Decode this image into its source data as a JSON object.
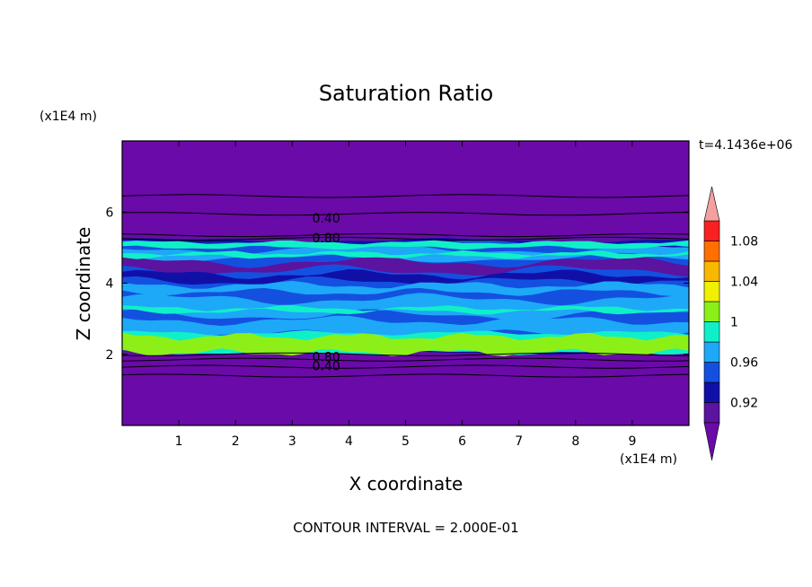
{
  "chart_data": {
    "type": "contour",
    "title": "Saturation Ratio",
    "xlabel": "X coordinate",
    "ylabel": "Z coordinate",
    "x_unit": "(x1E4 m)",
    "y_unit": "(x1E4 m)",
    "time_label": "t=4.1436e+06",
    "footer": "CONTOUR INTERVAL = 2.000E-01",
    "xlim": [
      0,
      10
    ],
    "ylim": [
      0,
      8
    ],
    "xticks": [
      1,
      2,
      3,
      4,
      5,
      6,
      7,
      8,
      9
    ],
    "yticks": [
      2,
      4,
      6
    ],
    "grid": false,
    "contour_labels": [
      {
        "text": "0.40",
        "x": 3.6,
        "y": 5.85
      },
      {
        "text": "0.80",
        "x": 3.6,
        "y": 5.3
      },
      {
        "text": "0.80",
        "x": 3.6,
        "y": 1.95
      },
      {
        "text": "0.40",
        "x": 3.6,
        "y": 1.7
      }
    ],
    "colorbar": {
      "levels": [
        0.9,
        0.92,
        0.94,
        0.96,
        0.98,
        1.0,
        1.02,
        1.04,
        1.06,
        1.08,
        1.1
      ],
      "tick_labels": [
        "0.92",
        "0.96",
        "1",
        "1.04",
        "1.08"
      ],
      "tick_values": [
        0.92,
        0.96,
        1.0,
        1.04,
        1.08
      ],
      "under_color": "#6a0aa8",
      "over_color": "#f5a0a0",
      "colors": [
        "#5a14a0",
        "#1010a8",
        "#1450e0",
        "#1ea8f8",
        "#10f0c8",
        "#8cf018",
        "#f0f000",
        "#f8b800",
        "#ff7000",
        "#f82020"
      ]
    }
  }
}
